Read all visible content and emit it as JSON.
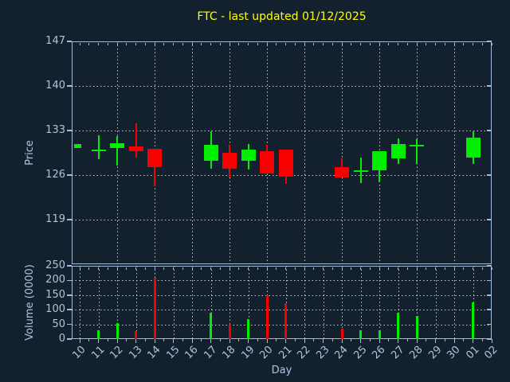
{
  "title": {
    "text": "FTC - last updated 01/12/2025",
    "color": "#ffff00"
  },
  "colors": {
    "background": "#13202e",
    "spine": "#9fbcd8",
    "tick_label": "#b0c4de",
    "grid": "#c8c8c8",
    "up": "#00ee00",
    "down": "#f70000"
  },
  "price_axis": {
    "label": "Price",
    "ticks": [
      147,
      140,
      133,
      126,
      119
    ],
    "ylim": [
      112,
      147
    ],
    "gridlines": [
      140,
      133,
      126,
      119
    ]
  },
  "volume_axis": {
    "label": "Volume (0000)",
    "ticks": [
      250,
      200,
      150,
      100,
      50,
      0
    ],
    "ylim": [
      0,
      250
    ],
    "gridlines": [
      200,
      150,
      100,
      50
    ]
  },
  "x_axis": {
    "label": "Day",
    "days": [
      "10",
      "11",
      "12",
      "13",
      "14",
      "15",
      "16",
      "17",
      "18",
      "19",
      "20",
      "21",
      "22",
      "23",
      "24",
      "25",
      "26",
      "27",
      "28",
      "29",
      "30",
      "01",
      "02"
    ],
    "price_grid_days": [
      "12",
      "14",
      "16",
      "18",
      "20",
      "22",
      "24",
      "26",
      "28",
      "30"
    ],
    "volume_grid_days": [
      "10",
      "11",
      "12",
      "13",
      "14",
      "15",
      "16",
      "17",
      "18",
      "19",
      "20",
      "21",
      "22",
      "23",
      "24",
      "25",
      "26",
      "27",
      "28",
      "29",
      "30",
      "01"
    ]
  },
  "chart_data": {
    "type": "candlestick+volume-bar",
    "title": "FTC - last updated 01/12/2025",
    "xlabel": "Day",
    "ylabel_price": "Price",
    "ylabel_volume": "Volume (0000)",
    "price_ylim": [
      112,
      147
    ],
    "volume_ylim": [
      0,
      250
    ],
    "grid": "dotted",
    "candles": [
      {
        "day": "10",
        "open": 130.2,
        "high": 130.9,
        "low": 130.2,
        "close": 130.9,
        "volume": 0,
        "narrow": true
      },
      {
        "day": "11",
        "open": 130.0,
        "high": 132.3,
        "low": 128.5,
        "close": 130.0,
        "volume": 30
      },
      {
        "day": "12",
        "open": 130.3,
        "high": 132.1,
        "low": 127.5,
        "close": 131.0,
        "volume": 55
      },
      {
        "day": "13",
        "open": 130.5,
        "high": 134.1,
        "low": 128.8,
        "close": 129.7,
        "volume": 28
      },
      {
        "day": "14",
        "open": 130.1,
        "high": 130.1,
        "low": 124.3,
        "close": 127.3,
        "volume": 210
      },
      {
        "day": "17",
        "open": 128.2,
        "high": 132.9,
        "low": 127.0,
        "close": 130.8,
        "volume": 90
      },
      {
        "day": "18",
        "open": 129.5,
        "high": 130.8,
        "low": 125.6,
        "close": 127.0,
        "volume": 48
      },
      {
        "day": "19",
        "open": 128.3,
        "high": 130.9,
        "low": 126.9,
        "close": 130.0,
        "volume": 68
      },
      {
        "day": "20",
        "open": 129.8,
        "high": 130.8,
        "low": 126.3,
        "close": 126.3,
        "volume": 150
      },
      {
        "day": "21",
        "open": 130.0,
        "high": 130.0,
        "low": 124.6,
        "close": 125.8,
        "volume": 123
      },
      {
        "day": "24",
        "open": 127.2,
        "high": 128.6,
        "low": 125.6,
        "close": 125.6,
        "volume": 35
      },
      {
        "day": "25",
        "open": 126.8,
        "high": 128.8,
        "low": 124.8,
        "close": 126.8,
        "volume": 30
      },
      {
        "day": "26",
        "open": 126.8,
        "high": 129.8,
        "low": 124.9,
        "close": 129.8,
        "volume": 30
      },
      {
        "day": "27",
        "open": 128.6,
        "high": 131.8,
        "low": 127.7,
        "close": 130.9,
        "volume": 90
      },
      {
        "day": "28",
        "open": 130.8,
        "high": 131.6,
        "low": 127.7,
        "close": 130.8,
        "volume": 80
      },
      {
        "day": "01",
        "open": 128.8,
        "high": 132.9,
        "low": 127.7,
        "close": 131.9,
        "volume": 125
      }
    ]
  }
}
